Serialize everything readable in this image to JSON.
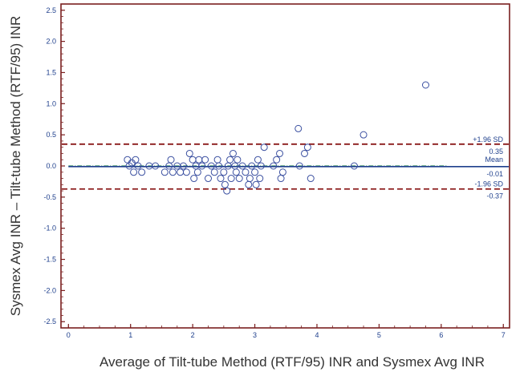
{
  "chart_data": {
    "type": "scatter",
    "title": "",
    "xlabel": "Average of Tilt-tube Method (RTF/95) INR and Sysmex Avg INR",
    "ylabel": "Sysmex Avg INR – Tilt-tube Method (RTF/95) INR",
    "xlim": [
      -0.12,
      7.1
    ],
    "ylim": [
      -2.6,
      2.6
    ],
    "xticks": [
      0,
      1,
      2,
      3,
      4,
      5,
      6,
      7
    ],
    "yticks": [
      -2.5,
      -2.0,
      -1.5,
      -1.0,
      -0.5,
      0.0,
      0.5,
      1.0,
      1.5,
      2.0,
      2.5
    ],
    "ytick_labels": [
      "-2.5",
      "-2.0",
      "-1.5",
      "-1.0",
      "-0.5",
      "0.0",
      "0.5",
      "1.0",
      "1.5",
      "2.0",
      "2.5"
    ],
    "grid": false,
    "colors": {
      "frame": "#7a1f1f",
      "points": "#3a4fa0",
      "mean_line": "#1e3f8c",
      "sd_line": "#8b1a1a",
      "zero_line": "#2e8b57",
      "annotation": "#1e3f8c",
      "axis_text": "#1e3f8c",
      "label_text": "#333333"
    },
    "reference_lines": {
      "mean": {
        "value": -0.01,
        "x_range": [
          0,
          7.0
        ],
        "label": "Mean",
        "value_label": "-0.01"
      },
      "upper_sd": {
        "value": 0.35,
        "label": "+1.96 SD",
        "value_label": "0.35"
      },
      "lower_sd": {
        "value": -0.37,
        "label": "-1.96 SD",
        "value_label": "-0.37"
      },
      "zero": {
        "value": 0.0,
        "x_range": [
          0,
          6.1
        ]
      }
    },
    "points": [
      {
        "x": 0.95,
        "y": 0.1
      },
      {
        "x": 0.98,
        "y": 0.0
      },
      {
        "x": 1.02,
        "y": 0.05
      },
      {
        "x": 1.05,
        "y": -0.1
      },
      {
        "x": 1.08,
        "y": 0.1
      },
      {
        "x": 1.12,
        "y": 0.0
      },
      {
        "x": 1.18,
        "y": -0.1
      },
      {
        "x": 1.3,
        "y": 0.0
      },
      {
        "x": 1.4,
        "y": 0.0
      },
      {
        "x": 1.55,
        "y": -0.1
      },
      {
        "x": 1.62,
        "y": 0.0
      },
      {
        "x": 1.65,
        "y": 0.1
      },
      {
        "x": 1.68,
        "y": -0.1
      },
      {
        "x": 1.75,
        "y": 0.0
      },
      {
        "x": 1.8,
        "y": -0.1
      },
      {
        "x": 1.85,
        "y": 0.0
      },
      {
        "x": 1.9,
        "y": -0.1
      },
      {
        "x": 1.95,
        "y": 0.2
      },
      {
        "x": 2.0,
        "y": 0.1
      },
      {
        "x": 2.02,
        "y": -0.2
      },
      {
        "x": 2.05,
        "y": 0.0
      },
      {
        "x": 2.08,
        "y": -0.1
      },
      {
        "x": 2.1,
        "y": 0.1
      },
      {
        "x": 2.15,
        "y": 0.0
      },
      {
        "x": 2.2,
        "y": 0.1
      },
      {
        "x": 2.25,
        "y": -0.2
      },
      {
        "x": 2.3,
        "y": 0.0
      },
      {
        "x": 2.35,
        "y": -0.1
      },
      {
        "x": 2.4,
        "y": 0.1
      },
      {
        "x": 2.42,
        "y": 0.0
      },
      {
        "x": 2.45,
        "y": -0.2
      },
      {
        "x": 2.5,
        "y": -0.1
      },
      {
        "x": 2.52,
        "y": -0.3
      },
      {
        "x": 2.55,
        "y": -0.4
      },
      {
        "x": 2.57,
        "y": 0.0
      },
      {
        "x": 2.6,
        "y": 0.1
      },
      {
        "x": 2.62,
        "y": -0.2
      },
      {
        "x": 2.65,
        "y": 0.2
      },
      {
        "x": 2.68,
        "y": 0.0
      },
      {
        "x": 2.7,
        "y": -0.1
      },
      {
        "x": 2.72,
        "y": 0.1
      },
      {
        "x": 2.75,
        "y": -0.2
      },
      {
        "x": 2.8,
        "y": 0.0
      },
      {
        "x": 2.85,
        "y": -0.1
      },
      {
        "x": 2.9,
        "y": -0.3
      },
      {
        "x": 2.92,
        "y": -0.2
      },
      {
        "x": 2.95,
        "y": 0.0
      },
      {
        "x": 3.0,
        "y": -0.1
      },
      {
        "x": 3.02,
        "y": -0.3
      },
      {
        "x": 3.05,
        "y": 0.1
      },
      {
        "x": 3.08,
        "y": -0.2
      },
      {
        "x": 3.1,
        "y": 0.0
      },
      {
        "x": 3.15,
        "y": 0.3
      },
      {
        "x": 3.3,
        "y": 0.0
      },
      {
        "x": 3.35,
        "y": 0.1
      },
      {
        "x": 3.4,
        "y": 0.2
      },
      {
        "x": 3.42,
        "y": -0.2
      },
      {
        "x": 3.45,
        "y": -0.1
      },
      {
        "x": 3.7,
        "y": 0.6
      },
      {
        "x": 3.72,
        "y": 0.0
      },
      {
        "x": 3.8,
        "y": 0.2
      },
      {
        "x": 3.85,
        "y": 0.3
      },
      {
        "x": 3.9,
        "y": -0.2
      },
      {
        "x": 4.6,
        "y": 0.0
      },
      {
        "x": 4.75,
        "y": 0.5
      },
      {
        "x": 5.75,
        "y": 1.3
      }
    ]
  }
}
